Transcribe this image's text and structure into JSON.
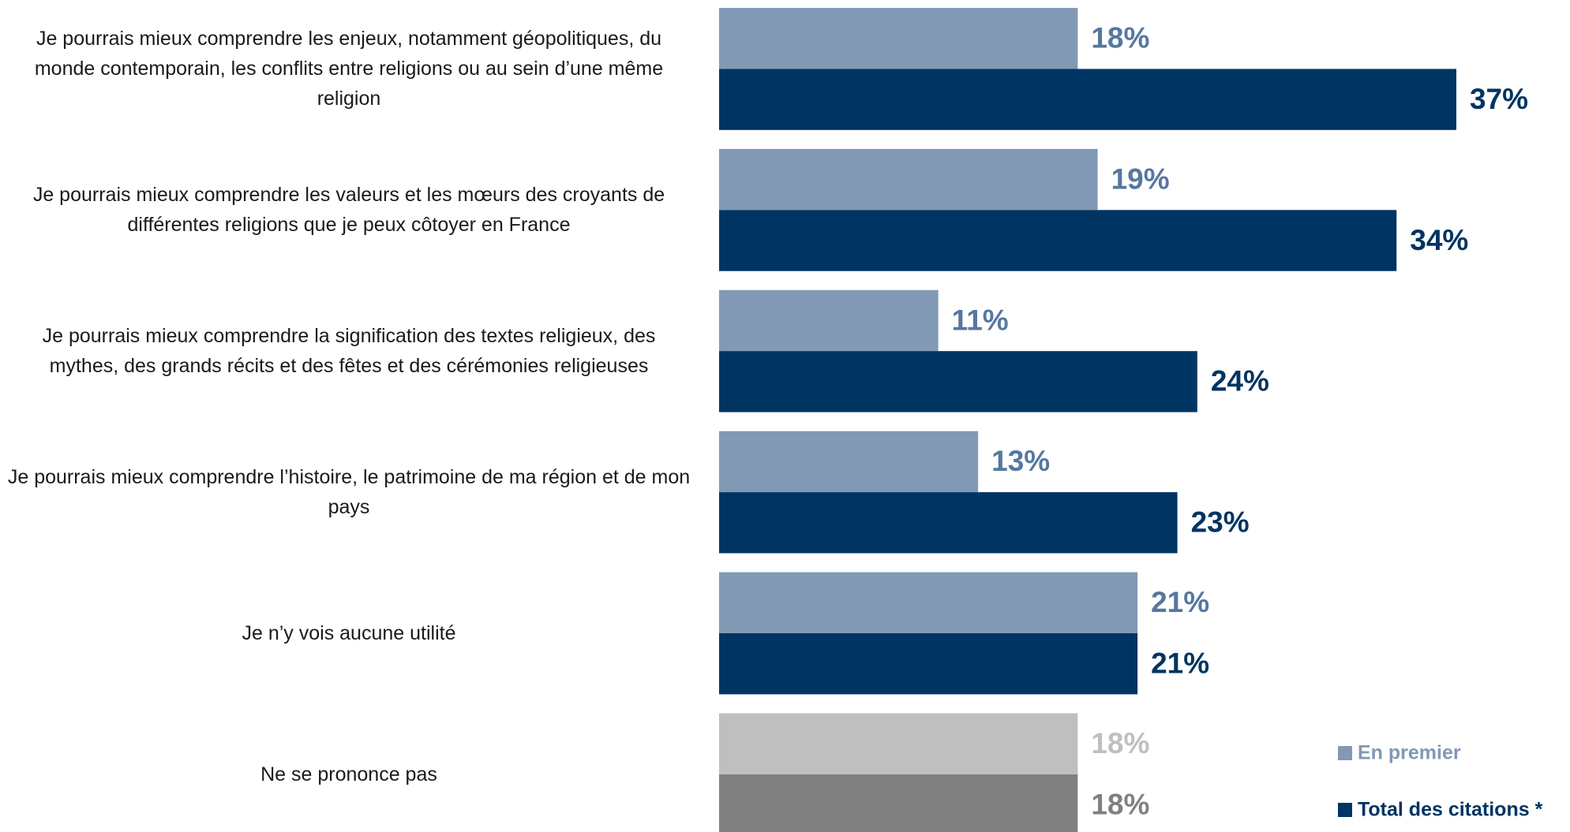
{
  "chart_data": {
    "type": "bar",
    "orientation": "horizontal",
    "categories": [
      "Je pourrais mieux comprendre les enjeux, notamment géopolitiques, du monde contemporain, les conflits entre religions ou au sein d’une même religion",
      "Je pourrais mieux comprendre les valeurs et les mœurs des croyants de différentes religions que je peux côtoyer en France",
      "Je pourrais mieux comprendre la signification des textes religieux, des mythes, des grands récits et des fêtes et des cérémonies religieuses",
      "Je pourrais mieux comprendre l’histoire, le patrimoine de ma région et de mon pays",
      "Je n’y vois aucune utilité",
      "Ne se prononce pas"
    ],
    "series": [
      {
        "name": "En premier",
        "color": "#8199b4",
        "colors": [
          "#8199b4",
          "#8199b4",
          "#8199b4",
          "#8199b4",
          "#8199b4",
          "#bfbfbf"
        ],
        "label_colors": [
          "#5677a0",
          "#5677a0",
          "#5677a0",
          "#5677a0",
          "#5677a0",
          "#bfbfbf"
        ],
        "values": [
          18,
          19,
          11,
          13,
          21,
          18
        ],
        "value_labels": [
          "18%",
          "19%",
          "11%",
          "13%",
          "21%",
          "18%"
        ]
      },
      {
        "name": "Total des citations *",
        "color": "#003462",
        "colors": [
          "#003462",
          "#003462",
          "#003462",
          "#003462",
          "#003462",
          "#808080"
        ],
        "label_colors": [
          "#003462",
          "#003462",
          "#003462",
          "#003462",
          "#003462",
          "#808080"
        ],
        "values": [
          37,
          34,
          24,
          23,
          21,
          18
        ],
        "value_labels": [
          "37%",
          "34%",
          "24%",
          "23%",
          "21%",
          "18%"
        ]
      }
    ],
    "legend": "bottom-right"
  }
}
